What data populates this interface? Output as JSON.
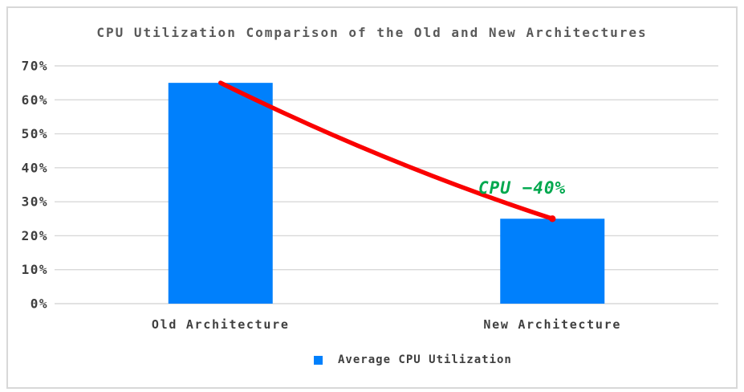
{
  "frame": {
    "background": "#FFFFFF",
    "border_color": "#D8D8D8"
  },
  "chart_data": {
    "type": "bar",
    "title": "CPU Utilization Comparison of the Old and New Architectures",
    "categories": [
      "Old Architecture",
      "New Architecture"
    ],
    "series": [
      {
        "name": "Average CPU Utilization",
        "values": [
          65,
          25
        ]
      }
    ],
    "value_suffix": "%",
    "ylim": [
      0,
      70
    ],
    "ytick_step": 10,
    "ytick_labels": [
      "0%",
      "10%",
      "20%",
      "30%",
      "40%",
      "50%",
      "60%",
      "70%"
    ],
    "grid": true,
    "legend_position": "bottom-center",
    "annotation": {
      "text": "CPU −40%",
      "color": "#00A84E"
    },
    "trend_line": {
      "from_category": "Old Architecture",
      "to_category": "New Architecture",
      "style": "curved-decay"
    },
    "colors": {
      "bar": "#0080FC",
      "trend_line": "#FA0000",
      "gridline": "#D9D9D9",
      "text": "#3F3F3F",
      "title": "#595959"
    }
  }
}
